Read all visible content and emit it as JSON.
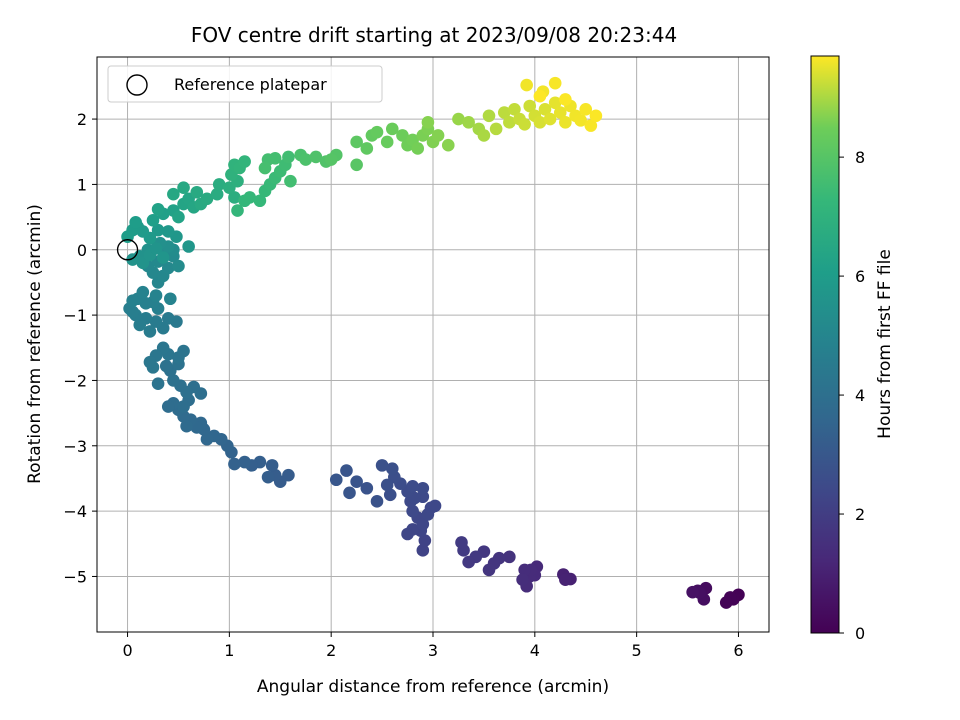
{
  "chart_data": {
    "type": "scatter",
    "title": "FOV centre drift starting at 2023/09/08 20:23:44",
    "xlabel": "Angular distance from reference (arcmin)",
    "ylabel": "Rotation from reference (arcmin)",
    "xlim": [
      -0.3,
      6.3
    ],
    "ylim": [
      -5.85,
      2.95
    ],
    "xticks": [
      0,
      1,
      2,
      3,
      4,
      5,
      6
    ],
    "yticks": [
      -5,
      -4,
      -3,
      -2,
      -1,
      0,
      1,
      2
    ],
    "grid": true,
    "legend": {
      "placement": "upper-left",
      "entries": [
        "Reference platepar"
      ]
    },
    "reference_point": {
      "x": 0,
      "y": 0
    },
    "colorbar": {
      "label": "Hours from first FF file",
      "range": [
        0,
        9.7
      ],
      "ticks": [
        0,
        2,
        4,
        6,
        8
      ],
      "colormap": "viridis"
    },
    "path_anchors": [
      [
        5.95,
        -5.33,
        0.0
      ],
      [
        5.65,
        -5.25,
        0.5
      ],
      [
        4.3,
        -5.02,
        1.0
      ],
      [
        3.9,
        -4.95,
        1.4
      ],
      [
        3.3,
        -4.6,
        1.9
      ],
      [
        2.85,
        -4.1,
        2.4
      ],
      [
        2.65,
        -3.6,
        2.7
      ],
      [
        2.2,
        -3.6,
        2.9
      ],
      [
        1.5,
        -3.35,
        3.2
      ],
      [
        1.0,
        -3.05,
        3.5
      ],
      [
        0.6,
        -2.6,
        3.8
      ],
      [
        0.5,
        -2.2,
        4.1
      ],
      [
        0.3,
        -1.6,
        4.4
      ],
      [
        0.2,
        -1.1,
        4.7
      ],
      [
        0.15,
        -0.7,
        5.0
      ],
      [
        0.3,
        -0.3,
        5.4
      ],
      [
        0.4,
        0.05,
        5.8
      ],
      [
        0.3,
        0.35,
        6.2
      ],
      [
        0.5,
        0.75,
        6.6
      ],
      [
        0.9,
        0.9,
        7.0
      ],
      [
        1.4,
        1.3,
        7.6
      ],
      [
        1.9,
        1.4,
        8.0
      ],
      [
        2.5,
        1.7,
        8.4
      ],
      [
        3.0,
        1.7,
        8.8
      ],
      [
        3.5,
        1.9,
        9.2
      ],
      [
        4.0,
        2.05,
        9.5
      ],
      [
        4.5,
        2.05,
        9.7
      ]
    ],
    "points": [
      [
        5.95,
        -5.35,
        0.05
      ],
      [
        6.0,
        -5.28,
        0.03
      ],
      [
        5.88,
        -5.4,
        0.08
      ],
      [
        5.92,
        -5.32,
        0.06
      ],
      [
        5.68,
        -5.18,
        0.35
      ],
      [
        5.62,
        -5.25,
        0.45
      ],
      [
        5.66,
        -5.35,
        0.4
      ],
      [
        5.6,
        -5.22,
        0.42
      ],
      [
        5.55,
        -5.24,
        0.5
      ],
      [
        4.35,
        -5.04,
        1.0
      ],
      [
        4.28,
        -4.97,
        1.02
      ],
      [
        4.3,
        -5.05,
        1.05
      ],
      [
        4.02,
        -4.85,
        1.3
      ],
      [
        3.95,
        -5.0,
        1.35
      ],
      [
        3.92,
        -5.15,
        1.38
      ],
      [
        3.9,
        -4.9,
        1.4
      ],
      [
        3.88,
        -5.05,
        1.45
      ],
      [
        4.0,
        -4.98,
        1.32
      ],
      [
        3.96,
        -4.9,
        1.37
      ],
      [
        3.75,
        -4.7,
        1.6
      ],
      [
        3.6,
        -4.8,
        1.7
      ],
      [
        3.55,
        -4.9,
        1.72
      ],
      [
        3.5,
        -4.62,
        1.78
      ],
      [
        3.42,
        -4.7,
        1.82
      ],
      [
        3.35,
        -4.78,
        1.85
      ],
      [
        3.3,
        -4.6,
        1.9
      ],
      [
        3.28,
        -4.48,
        1.92
      ],
      [
        3.65,
        -4.72,
        1.65
      ],
      [
        2.9,
        -4.6,
        2.2
      ],
      [
        2.92,
        -4.45,
        2.22
      ],
      [
        2.88,
        -4.3,
        2.26
      ],
      [
        2.8,
        -4.28,
        2.3
      ],
      [
        2.75,
        -4.35,
        2.3
      ],
      [
        2.85,
        -4.1,
        2.35
      ],
      [
        2.9,
        -4.2,
        2.35
      ],
      [
        2.95,
        -4.05,
        2.38
      ],
      [
        2.8,
        -4.0,
        2.42
      ],
      [
        2.78,
        -3.85,
        2.45
      ],
      [
        2.75,
        -3.7,
        2.5
      ],
      [
        2.82,
        -3.8,
        2.48
      ],
      [
        2.9,
        -3.78,
        2.46
      ],
      [
        2.98,
        -3.95,
        2.4
      ],
      [
        3.02,
        -3.92,
        2.4
      ],
      [
        2.9,
        -3.65,
        2.52
      ],
      [
        2.8,
        -3.62,
        2.55
      ],
      [
        2.68,
        -3.58,
        2.6
      ],
      [
        2.62,
        -3.48,
        2.65
      ],
      [
        2.6,
        -3.35,
        2.7
      ],
      [
        2.5,
        -3.3,
        2.72
      ],
      [
        2.55,
        -3.6,
        2.68
      ],
      [
        2.58,
        -3.75,
        2.66
      ],
      [
        2.45,
        -3.85,
        2.78
      ],
      [
        2.35,
        -3.65,
        2.82
      ],
      [
        2.25,
        -3.55,
        2.85
      ],
      [
        2.18,
        -3.72,
        2.88
      ],
      [
        2.15,
        -3.38,
        2.9
      ],
      [
        2.05,
        -3.52,
        2.95
      ],
      [
        1.58,
        -3.45,
        3.15
      ],
      [
        1.5,
        -3.55,
        3.18
      ],
      [
        1.45,
        -3.45,
        3.2
      ],
      [
        1.42,
        -3.3,
        3.22
      ],
      [
        1.38,
        -3.48,
        3.24
      ],
      [
        1.3,
        -3.25,
        3.28
      ],
      [
        1.22,
        -3.3,
        3.3
      ],
      [
        1.15,
        -3.25,
        3.35
      ],
      [
        1.05,
        -3.28,
        3.4
      ],
      [
        1.02,
        -3.1,
        3.45
      ],
      [
        0.98,
        -3.0,
        3.5
      ],
      [
        0.92,
        -2.9,
        3.55
      ],
      [
        0.85,
        -2.85,
        3.6
      ],
      [
        0.78,
        -2.9,
        3.62
      ],
      [
        0.75,
        -2.75,
        3.65
      ],
      [
        0.72,
        -2.65,
        3.68
      ],
      [
        0.68,
        -2.72,
        3.7
      ],
      [
        0.62,
        -2.6,
        3.75
      ],
      [
        0.58,
        -2.7,
        3.78
      ],
      [
        0.55,
        -2.55,
        3.8
      ],
      [
        0.5,
        -2.45,
        3.82
      ],
      [
        0.45,
        -2.35,
        3.85
      ],
      [
        0.4,
        -2.4,
        3.88
      ],
      [
        0.6,
        -2.3,
        3.9
      ],
      [
        0.55,
        -2.4,
        3.92
      ],
      [
        0.72,
        -2.2,
        3.95
      ],
      [
        0.65,
        -2.1,
        3.98
      ],
      [
        0.58,
        -2.18,
        4.0
      ],
      [
        0.52,
        -2.08,
        4.02
      ],
      [
        0.45,
        -2.0,
        4.05
      ],
      [
        0.42,
        -1.85,
        4.08
      ],
      [
        0.5,
        -1.75,
        4.1
      ],
      [
        0.38,
        -1.78,
        4.12
      ],
      [
        0.3,
        -2.05,
        4.15
      ],
      [
        0.55,
        -1.55,
        4.2
      ],
      [
        0.5,
        -1.65,
        4.22
      ],
      [
        0.4,
        -1.6,
        4.25
      ],
      [
        0.35,
        -1.5,
        4.28
      ],
      [
        0.28,
        -1.62,
        4.3
      ],
      [
        0.25,
        -1.8,
        4.32
      ],
      [
        0.22,
        -1.72,
        4.35
      ],
      [
        0.48,
        -1.1,
        4.45
      ],
      [
        0.4,
        -1.05,
        4.48
      ],
      [
        0.35,
        -1.2,
        4.5
      ],
      [
        0.28,
        -1.1,
        4.52
      ],
      [
        0.22,
        -1.25,
        4.55
      ],
      [
        0.18,
        -1.05,
        4.58
      ],
      [
        0.12,
        -1.15,
        4.6
      ],
      [
        0.08,
        -1.0,
        4.62
      ],
      [
        0.05,
        -0.95,
        4.65
      ],
      [
        0.02,
        -0.9,
        4.68
      ],
      [
        0.3,
        -0.9,
        4.7
      ],
      [
        0.25,
        -0.8,
        4.75
      ],
      [
        0.18,
        -0.82,
        4.78
      ],
      [
        0.1,
        -0.75,
        4.8
      ],
      [
        0.05,
        -0.78,
        4.82
      ],
      [
        0.15,
        -0.65,
        4.85
      ],
      [
        0.28,
        -0.7,
        4.88
      ],
      [
        0.42,
        -0.75,
        4.9
      ],
      [
        0.3,
        -0.5,
        5.0
      ],
      [
        0.25,
        -0.35,
        5.05
      ],
      [
        0.35,
        -0.4,
        5.08
      ],
      [
        0.4,
        -0.28,
        5.1
      ],
      [
        0.2,
        -0.25,
        5.12
      ],
      [
        0.3,
        -0.18,
        5.15
      ],
      [
        0.45,
        -0.1,
        5.2
      ],
      [
        0.5,
        -0.25,
        5.22
      ],
      [
        0.38,
        -0.05,
        5.25
      ],
      [
        0.45,
        0.0,
        5.3
      ],
      [
        0.4,
        0.05,
        5.4
      ],
      [
        0.32,
        0.1,
        5.45
      ],
      [
        0.2,
        0.0,
        5.5
      ],
      [
        0.12,
        -0.1,
        5.55
      ],
      [
        0.05,
        -0.15,
        5.58
      ],
      [
        0.15,
        -0.2,
        5.6
      ],
      [
        0.22,
        -0.08,
        5.62
      ],
      [
        0.28,
        0.02,
        5.65
      ],
      [
        0.35,
        -0.12,
        5.68
      ],
      [
        0.6,
        0.05,
        5.7
      ],
      [
        0.48,
        0.2,
        5.75
      ],
      [
        0.4,
        0.28,
        5.8
      ],
      [
        0.3,
        0.3,
        5.85
      ],
      [
        0.22,
        0.18,
        5.9
      ],
      [
        0.15,
        0.28,
        5.92
      ],
      [
        0.1,
        0.35,
        5.95
      ],
      [
        0.05,
        0.3,
        5.98
      ],
      [
        0.08,
        0.42,
        6.0
      ],
      [
        0.0,
        0.2,
        6.02
      ],
      [
        0.25,
        0.45,
        6.1
      ],
      [
        0.35,
        0.55,
        6.15
      ],
      [
        0.45,
        0.6,
        6.2
      ],
      [
        0.3,
        0.62,
        6.25
      ],
      [
        0.5,
        0.5,
        6.3
      ],
      [
        0.55,
        0.7,
        6.35
      ],
      [
        0.6,
        0.78,
        6.4
      ],
      [
        0.65,
        0.65,
        6.45
      ],
      [
        0.45,
        0.85,
        6.5
      ],
      [
        0.55,
        0.95,
        6.55
      ],
      [
        0.68,
        0.88,
        6.6
      ],
      [
        0.72,
        0.7,
        6.62
      ],
      [
        0.78,
        0.78,
        6.65
      ],
      [
        0.88,
        0.85,
        6.7
      ],
      [
        0.9,
        1.0,
        6.75
      ],
      [
        1.05,
        0.8,
        6.8
      ],
      [
        1.0,
        0.95,
        6.85
      ],
      [
        1.08,
        1.05,
        6.9
      ],
      [
        1.02,
        1.15,
        7.0
      ],
      [
        1.05,
        1.3,
        7.05
      ],
      [
        1.1,
        1.25,
        7.1
      ],
      [
        1.15,
        1.35,
        7.15
      ],
      [
        1.08,
        0.6,
        7.2
      ],
      [
        1.15,
        0.75,
        7.22
      ],
      [
        1.2,
        0.8,
        7.25
      ],
      [
        1.3,
        0.75,
        7.28
      ],
      [
        1.35,
        0.9,
        7.3
      ],
      [
        1.4,
        1.0,
        7.35
      ],
      [
        1.45,
        1.1,
        7.4
      ],
      [
        1.5,
        1.2,
        7.45
      ],
      [
        1.55,
        1.3,
        7.5
      ],
      [
        1.58,
        1.42,
        7.55
      ],
      [
        1.6,
        1.05,
        7.58
      ],
      [
        1.45,
        1.4,
        7.6
      ],
      [
        1.38,
        1.38,
        7.62
      ],
      [
        1.35,
        1.25,
        7.65
      ],
      [
        1.7,
        1.45,
        7.75
      ],
      [
        1.75,
        1.38,
        7.8
      ],
      [
        1.85,
        1.42,
        7.85
      ],
      [
        1.95,
        1.35,
        7.9
      ],
      [
        2.05,
        1.45,
        7.95
      ],
      [
        2.0,
        1.38,
        8.0
      ],
      [
        2.25,
        1.3,
        8.05
      ],
      [
        2.25,
        1.65,
        8.15
      ],
      [
        2.35,
        1.55,
        8.2
      ],
      [
        2.4,
        1.75,
        8.25
      ],
      [
        2.45,
        1.8,
        8.3
      ],
      [
        2.55,
        1.65,
        8.35
      ],
      [
        2.6,
        1.85,
        8.4
      ],
      [
        2.7,
        1.75,
        8.45
      ],
      [
        2.75,
        1.6,
        8.5
      ],
      [
        2.8,
        1.68,
        8.52
      ],
      [
        2.85,
        1.55,
        8.55
      ],
      [
        2.9,
        1.75,
        8.6
      ],
      [
        2.95,
        1.85,
        8.62
      ],
      [
        3.0,
        1.65,
        8.65
      ],
      [
        3.05,
        1.75,
        8.68
      ],
      [
        2.95,
        1.95,
        8.7
      ],
      [
        3.15,
        1.6,
        8.72
      ],
      [
        3.25,
        2.0,
        8.85
      ],
      [
        3.35,
        1.95,
        8.9
      ],
      [
        3.45,
        1.85,
        8.95
      ],
      [
        3.5,
        1.75,
        9.0
      ],
      [
        3.55,
        2.05,
        9.05
      ],
      [
        3.62,
        1.85,
        9.1
      ],
      [
        3.7,
        2.1,
        9.15
      ],
      [
        3.75,
        1.95,
        9.18
      ],
      [
        3.8,
        2.15,
        9.2
      ],
      [
        3.85,
        2.0,
        9.25
      ],
      [
        3.9,
        1.92,
        9.28
      ],
      [
        3.95,
        2.2,
        9.3
      ],
      [
        4.0,
        2.05,
        9.35
      ],
      [
        4.05,
        1.95,
        9.38
      ],
      [
        4.1,
        2.15,
        9.4
      ],
      [
        4.15,
        2.0,
        9.45
      ],
      [
        4.2,
        2.25,
        9.5
      ],
      [
        4.25,
        2.1,
        9.52
      ],
      [
        4.3,
        1.95,
        9.55
      ],
      [
        4.35,
        2.2,
        9.58
      ],
      [
        4.4,
        2.05,
        9.6
      ],
      [
        4.45,
        1.98,
        9.62
      ],
      [
        4.5,
        2.15,
        9.65
      ],
      [
        4.55,
        1.9,
        9.66
      ],
      [
        4.6,
        2.05,
        9.68
      ],
      [
        4.05,
        2.35,
        9.7
      ],
      [
        3.92,
        2.52,
        9.6
      ],
      [
        4.08,
        2.42,
        9.62
      ],
      [
        4.2,
        2.55,
        9.65
      ],
      [
        4.3,
        2.3,
        9.68
      ]
    ]
  }
}
